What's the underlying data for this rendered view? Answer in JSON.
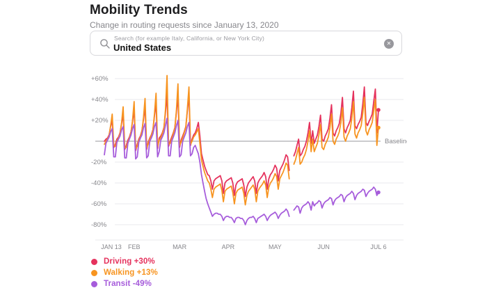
{
  "page": {
    "title": "Mobility Trends",
    "subtitle": "Change in routing requests since January 13, 2020"
  },
  "search": {
    "placeholder": "Search (for example Italy, California, or New York City)",
    "value": "United States",
    "clear_symbol": "✕"
  },
  "chart_data": {
    "type": "line",
    "title": "Mobility Trends — United States",
    "x_axis": {
      "tick_labels": [
        "JAN 13",
        "FEB",
        "MAR",
        "APR",
        "MAY",
        "JUN",
        "JUL 6"
      ],
      "tick_days": [
        0,
        19,
        48,
        79,
        109,
        140,
        175
      ],
      "start": "JAN 13",
      "end": "JUL 6",
      "total_days": 176
    },
    "y_axis": {
      "tick_labels": [
        "+60%",
        "+40%",
        "+20%",
        "-20%",
        "-40%",
        "-60%",
        "-80%"
      ],
      "tick_values": [
        60,
        40,
        20,
        -20,
        -40,
        -60,
        -80
      ],
      "unit": "%",
      "baseline_label": "Baseline",
      "baseline_value": 0,
      "ylim": [
        -90,
        72
      ],
      "grid": true
    },
    "legend_position": "bottom-left",
    "series": [
      {
        "name": "Driving",
        "legend_label": "Driving +30%",
        "latest_value": 30,
        "color": "#E5325D",
        "values": [
          0,
          2,
          3,
          6,
          14,
          20,
          -6,
          -3,
          2,
          4,
          8,
          17,
          26,
          -8,
          -4,
          1,
          4,
          9,
          19,
          30,
          -9,
          -3,
          2,
          5,
          10,
          21,
          33,
          -8,
          -1,
          3,
          6,
          11,
          24,
          37,
          -7,
          3,
          5,
          8,
          13,
          27,
          45,
          -5,
          0,
          4,
          8,
          13,
          28,
          43,
          -6,
          1,
          5,
          9,
          14,
          29,
          44,
          -4,
          2,
          6,
          8,
          12,
          18,
          5,
          -12,
          -18,
          -24,
          -28,
          -32,
          -33,
          -38,
          -46,
          -38,
          -36,
          -35,
          -34,
          -33,
          -38,
          -50,
          -40,
          -38,
          -37,
          -36,
          -35,
          -40,
          -52,
          -42,
          -39,
          -38,
          -37,
          -36,
          -42,
          -53,
          -44,
          -40,
          -38,
          -36,
          -34,
          -38,
          -50,
          -40,
          -37,
          -35,
          -33,
          -30,
          -34,
          -46,
          -36,
          -32,
          -30,
          -27,
          -23,
          -26,
          -38,
          -28,
          -25,
          -22,
          -18,
          -13,
          -15,
          -28,
          null,
          null,
          -14,
          -10,
          -4,
          2,
          -14,
          -12,
          -8,
          -5,
          0,
          8,
          18,
          -2,
          10,
          -2,
          2,
          6,
          14,
          25,
          2,
          0,
          5,
          8,
          12,
          22,
          35,
          8,
          5,
          10,
          13,
          17,
          27,
          42,
          12,
          8,
          13,
          16,
          20,
          32,
          48,
          15,
          12,
          16,
          19,
          23,
          36,
          52,
          18,
          15,
          19,
          22,
          26,
          38,
          50,
          8,
          30
        ]
      },
      {
        "name": "Walking",
        "legend_label": "Walking +13%",
        "latest_value": 13,
        "color": "#F79420",
        "values": [
          -3,
          0,
          2,
          5,
          15,
          26,
          -4,
          -5,
          0,
          3,
          7,
          18,
          33,
          -6,
          -6,
          -1,
          3,
          8,
          20,
          38,
          -7,
          -5,
          1,
          4,
          9,
          23,
          41,
          -6,
          -3,
          2,
          5,
          10,
          26,
          46,
          -5,
          1,
          3,
          7,
          12,
          30,
          63,
          -3,
          -2,
          2,
          7,
          12,
          30,
          55,
          -4,
          -1,
          3,
          8,
          13,
          31,
          52,
          -3,
          0,
          4,
          6,
          9,
          12,
          -2,
          -18,
          -24,
          -30,
          -34,
          -38,
          -40,
          -46,
          -54,
          -46,
          -44,
          -43,
          -42,
          -41,
          -47,
          -58,
          -48,
          -46,
          -45,
          -44,
          -43,
          -49,
          -60,
          -50,
          -47,
          -46,
          -45,
          -44,
          -50,
          -61,
          -52,
          -48,
          -46,
          -44,
          -42,
          -46,
          -58,
          -48,
          -45,
          -43,
          -41,
          -38,
          -42,
          -54,
          -44,
          -40,
          -38,
          -35,
          -31,
          -34,
          -46,
          -36,
          -33,
          -30,
          -26,
          -21,
          -23,
          -36,
          null,
          null,
          -22,
          -18,
          -12,
          -6,
          -22,
          -20,
          -16,
          -13,
          -8,
          0,
          10,
          -10,
          2,
          -10,
          -6,
          -2,
          6,
          16,
          -6,
          -8,
          -3,
          0,
          4,
          13,
          26,
          0,
          -3,
          2,
          5,
          9,
          18,
          32,
          4,
          0,
          5,
          8,
          12,
          22,
          38,
          7,
          3,
          8,
          11,
          15,
          27,
          42,
          10,
          6,
          11,
          14,
          18,
          29,
          40,
          -4,
          13
        ]
      },
      {
        "name": "Transit",
        "legend_label": "Transit -49%",
        "latest_value": -49,
        "color": "#A65CDB",
        "values": [
          -13,
          -2,
          1,
          4,
          9,
          12,
          -15,
          -15,
          -1,
          2,
          5,
          11,
          14,
          -16,
          -16,
          -2,
          2,
          6,
          12,
          16,
          -17,
          -15,
          -1,
          3,
          6,
          13,
          17,
          -16,
          -14,
          0,
          3,
          7,
          14,
          18,
          -15,
          -10,
          1,
          4,
          8,
          15,
          22,
          -14,
          -14,
          0,
          4,
          8,
          15,
          20,
          -15,
          -13,
          0,
          4,
          8,
          14,
          18,
          -14,
          -12,
          -6,
          -4,
          -8,
          -12,
          -20,
          -32,
          -40,
          -48,
          -55,
          -60,
          -64,
          -68,
          -72,
          -70,
          -69,
          -69,
          -70,
          -70,
          -72,
          -76,
          -73,
          -72,
          -72,
          -73,
          -73,
          -75,
          -78,
          -74,
          -73,
          -73,
          -74,
          -74,
          -76,
          -80,
          -76,
          -74,
          -73,
          -73,
          -72,
          -74,
          -78,
          -74,
          -73,
          -72,
          -71,
          -70,
          -72,
          -76,
          -73,
          -71,
          -70,
          -69,
          -68,
          -70,
          -74,
          -71,
          -69,
          -68,
          -67,
          -65,
          -67,
          -72,
          null,
          null,
          -66,
          -64,
          -62,
          -63,
          -69,
          -64,
          -62,
          -61,
          -60,
          -58,
          -60,
          -66,
          -58,
          -62,
          -60,
          -59,
          -57,
          -58,
          -64,
          -60,
          -58,
          -57,
          -56,
          -54,
          -55,
          -61,
          -57,
          -55,
          -54,
          -53,
          -51,
          -52,
          -58,
          -54,
          -52,
          -51,
          -50,
          -48,
          -50,
          -56,
          -52,
          -50,
          -49,
          -48,
          -46,
          -47,
          -53,
          -50,
          -48,
          -47,
          -46,
          -44,
          -46,
          -52,
          -49
        ]
      }
    ],
    "notes": "Data gap (no values) on May 11-12, 2020"
  }
}
